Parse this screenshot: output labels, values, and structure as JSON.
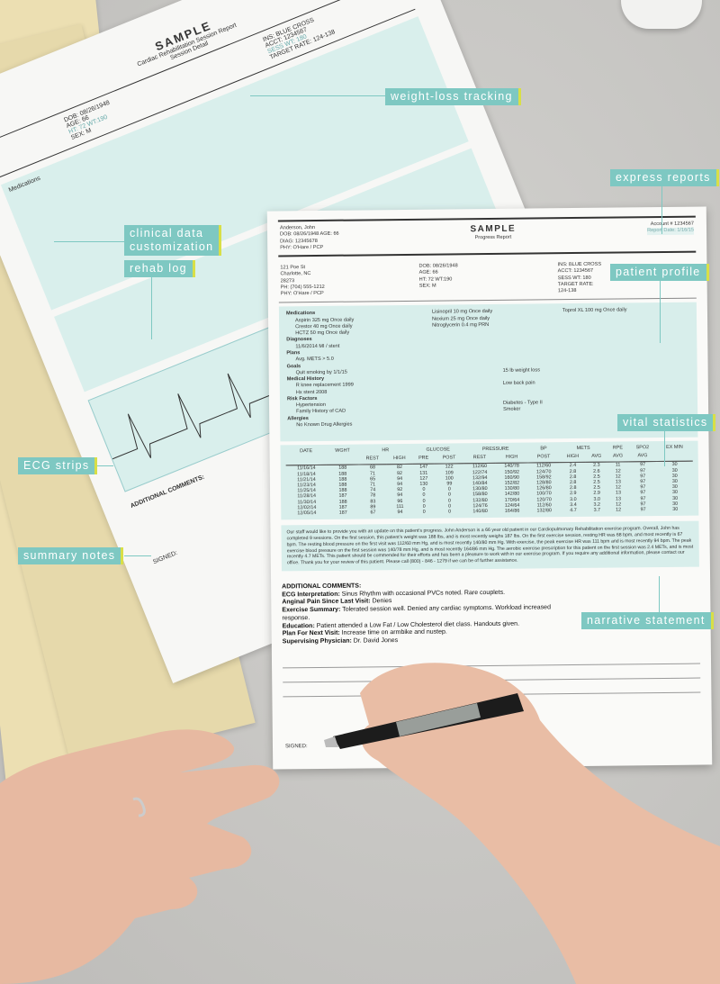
{
  "callouts": {
    "weight_loss": "weight-loss tracking",
    "express": "express reports",
    "clinical_1": "clinical data",
    "clinical_2": "customization",
    "rehab": "rehab log",
    "profile": "patient profile",
    "vitals": "vital statistics",
    "ecg": "ECG strips",
    "summary": "summary notes",
    "narrative": "narrative statement"
  },
  "colors": {
    "callout": "#7ec8c2",
    "accent": "#d8df47",
    "teal_panel": "#d8eeeb",
    "folder": "#ecdfb2"
  },
  "back_doc": {
    "title": "SAMPLE",
    "subtitle": "Cardiac Rehabilitation Session Report",
    "subtitle2": "Session Detail",
    "ins": "INS: BLUE CROSS",
    "acct": "ACCT: 1234567",
    "sess": "SESS WT: 180",
    "target": "TARGET RATE: 124-138",
    "dob": "DOB: 08/26/1948",
    "age": "AGE: 66",
    "ht": "HT: 72 WT:190",
    "sex": "SEX: M",
    "meds": "Medications",
    "comments": "ADDITIONAL COMMENTS:",
    "signed": "SIGNED:"
  },
  "front_doc": {
    "name": "Anderson, John",
    "dob_age": "DOB: 08/26/1948 AGE: 66",
    "diag": "DIAG: 12345678",
    "phy": "PHY: O'Hare / PCP",
    "title": "SAMPLE",
    "subtitle": "Progress Report",
    "account": "Account # 1234567",
    "report_date": "Report Date: 1/16/15",
    "addr1": "121 Poe St",
    "addr2": "Charlotte, NC 28273",
    "phone": "PH: (704) 555-1212",
    "phy2": "PHY: O'Hare / PCP",
    "dob": "DOB: 08/26/1948",
    "age": "AGE: 66",
    "ht": "HT: 72  WT:190",
    "sex": "SEX: M",
    "ins": "INS: BLUE CROSS",
    "acct": "ACCT: 1234567",
    "sess": "SESS WT: 180",
    "target": "TARGET RATE: 124-138",
    "medications_h": "Medications",
    "med1": "Aspirin 325 mg Once daily",
    "med2": "Crestor 40 mg Once daily",
    "med3": "HCTZ 50 mg Once daily",
    "med4": "Lisinopril 10 mg Once daily",
    "med5": "Nexium 25 mg Once daily",
    "med6": "Nitroglycerin 0.4 mg PRN",
    "med7": "Toprol XL 100 mg Once daily",
    "diagnoses_h": "Diagnoses",
    "diag1": "11/6/2014 MI / stent",
    "plans_h": "Plans",
    "plan1": "Avg. METS > 5.0",
    "goals_h": "Goals",
    "goal1": "Quit smoking by 1/1/15",
    "goal2": "15 lb weight loss",
    "history_h": "Medical History",
    "hist1": "R knee replacement 1999",
    "hist2": "Hx stent 2008",
    "hist3": "Low back pain",
    "risk_h": "Risk Factors",
    "risk1": "Hypertension",
    "risk2": "Family History of CAD",
    "risk3": "Diabetes - Type II",
    "risk4": "Smoker",
    "allergies_h": "Allergies",
    "allergy1": "No Known Drug Allergies",
    "table_groups": [
      "DATE",
      "WGHT",
      "HR",
      "GLUCOSE",
      "PRESSURE",
      "BP",
      "METS",
      "RPE",
      "SPO2",
      "EX MIN"
    ],
    "table_sub": [
      "",
      "",
      "REST",
      "HIGH",
      "PRE",
      "POST",
      "REST",
      "HIGH",
      "POST",
      "HIGH",
      "AVG",
      "AVG",
      "AVG",
      ""
    ],
    "rows": [
      [
        "11/16/14",
        "188",
        "68",
        "82",
        "147",
        "122",
        "112/60",
        "140/78",
        "112/60",
        "2.4",
        "2.3",
        "11",
        "97",
        "30"
      ],
      [
        "11/18/14",
        "188",
        "71",
        "92",
        "131",
        "109",
        "122/74",
        "150/92",
        "124/70",
        "2.8",
        "2.6",
        "12",
        "97",
        "30"
      ],
      [
        "11/21/14",
        "188",
        "65",
        "94",
        "127",
        "100",
        "132/94",
        "160/90",
        "158/92",
        "2.8",
        "2.5",
        "12",
        "97",
        "30"
      ],
      [
        "11/23/14",
        "188",
        "71",
        "94",
        "130",
        "99",
        "140/84",
        "152/82",
        "128/80",
        "2.8",
        "2.5",
        "13",
        "97",
        "30"
      ],
      [
        "11/25/14",
        "188",
        "74",
        "92",
        "0",
        "0",
        "130/80",
        "130/80",
        "126/80",
        "2.8",
        "2.5",
        "12",
        "97",
        "30"
      ],
      [
        "11/28/14",
        "187",
        "78",
        "94",
        "0",
        "0",
        "158/80",
        "142/80",
        "100/70",
        "2.9",
        "2.9",
        "13",
        "97",
        "30"
      ],
      [
        "11/30/14",
        "188",
        "83",
        "96",
        "0",
        "0",
        "132/80",
        "170/64",
        "120/70",
        "3.0",
        "3.0",
        "13",
        "97",
        "30"
      ],
      [
        "12/02/14",
        "187",
        "89",
        "111",
        "0",
        "0",
        "124/76",
        "124/64",
        "112/60",
        "3.4",
        "3.2",
        "12",
        "97",
        "30"
      ],
      [
        "12/05/14",
        "187",
        "67",
        "94",
        "0",
        "0",
        "140/80",
        "164/86",
        "132/80",
        "4.7",
        "3.7",
        "12",
        "97",
        "30"
      ]
    ],
    "narrative": "Our staff would like to provide you with an update on this patient's progress.  John Anderson is a 66 year old patient in our Cardiopulmonary Rehabilitation exercise program.  Overall, John has completed 9 sessions.  On the first session, this patient's weight was 188 lbs, and is most recently weighs 187 lbs.  On the first exercise session, resting HR was 68 bpm, and most recently is 67 bpm.  The resting blood pressure on the first visit was 112/60 mm Hg, and is most recently 140/80 mm Hg.  With exercise, the peak exercise HR was 111 bpm and is most recently 94 bpm.  The peak exercise blood pressure on the first session was 140/78 mm Hg, and is most recently 164/86 mm Hg.  The aerobic exercise prescription for this patient on the first session was 2.4 METs, and is most recently 4.7 METs.  This patient should be commended for their efforts and has been a pleasure to work with in our exercise program.  If you require any additional information, please contact our office.  Thank you for your review of this patient.  Please call (800) - 846 - 1279 if we can be of further assistance.",
    "comments_h": "ADDITIONAL COMMENTS:",
    "c1_l": "ECG Interpretation:",
    "c1_v": " Sinus Rhythm with occasional PVCs noted.  Rare couplets.",
    "c2_l": "Anginal Pain Since Last Visit:",
    "c2_v": " Denies",
    "c3_l": "Exercise Summary:",
    "c3_v": " Tolerated session well.  Denied any cardiac symptoms.  Workload increased",
    "c3_cont": "response.",
    "c4_l": "Education:",
    "c4_v": " Patient attended a Low Fat / Low Cholesterol diet class.  Handouts given.",
    "c5_l": "Plan For Next Visit:",
    "c5_v": " Increase time on armbike and nustep.",
    "c6_l": "Supervising Physician:",
    "c6_v": " Dr. David Jones",
    "signed": "SIGNED:"
  }
}
